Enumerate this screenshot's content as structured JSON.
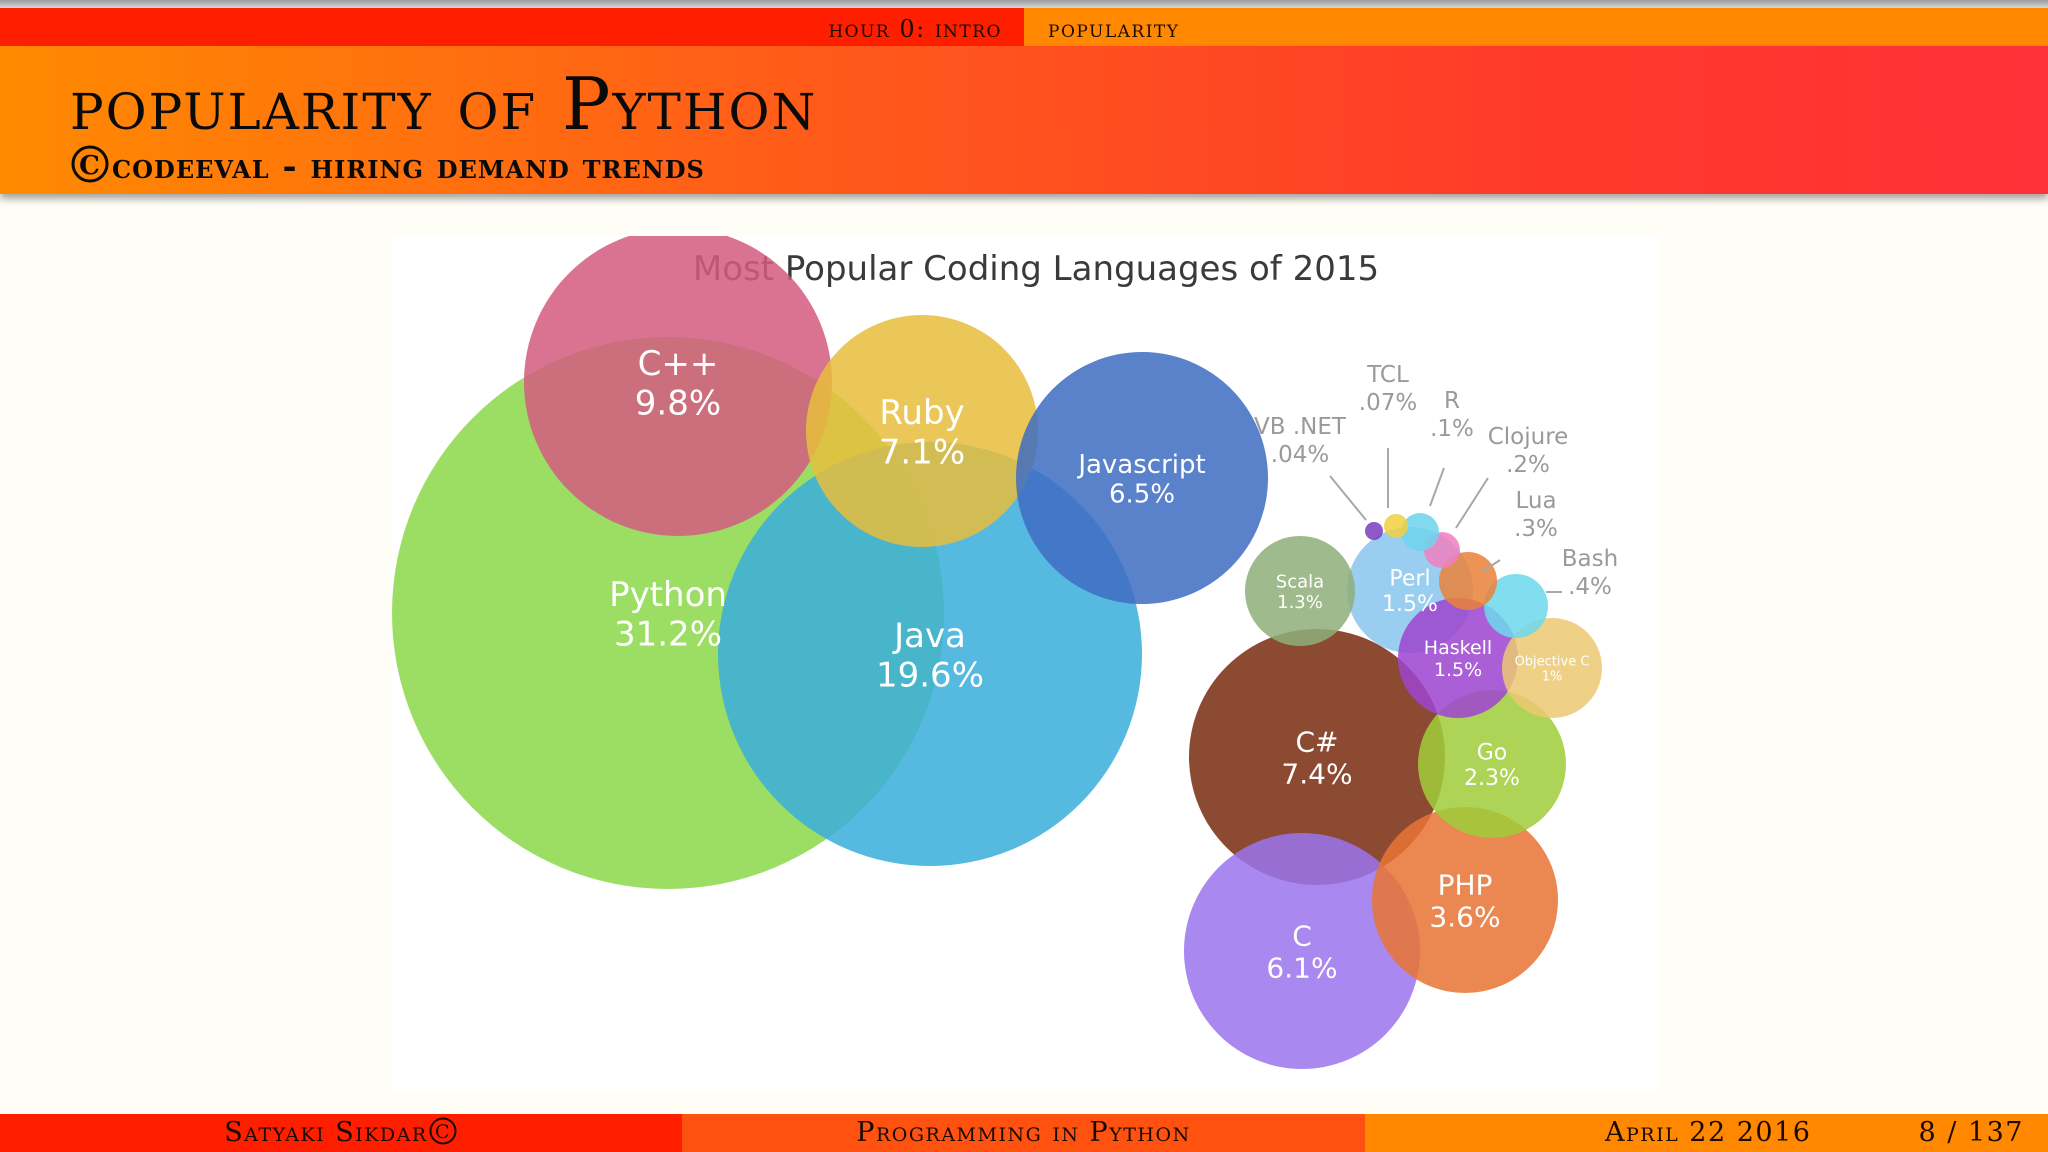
{
  "navbar": {
    "section": "hour 0: intro",
    "subsection": "popularity"
  },
  "frame": {
    "title": "popularity of Python",
    "subtitle_symbol": "C",
    "subtitle": "codeeval - hiring demand trends"
  },
  "footer": {
    "author": "Satyaki Sikdar",
    "author_symbol": "C",
    "presentation_title": "Programming in Python",
    "date": "April 22 2016",
    "page": "8 / 137"
  },
  "chart_data": {
    "type": "bubble",
    "title": "Most Popular Coding Languages of 2015",
    "unit": "%",
    "series": [
      {
        "name": "Python",
        "value": 31.2,
        "label": "31.2%",
        "color": "#8cd94a"
      },
      {
        "name": "Java",
        "value": 19.6,
        "label": "19.6%",
        "color": "#3aaedb"
      },
      {
        "name": "C++",
        "value": 9.8,
        "label": "9.8%",
        "color": "#d45c80"
      },
      {
        "name": "C#",
        "value": 7.4,
        "label": "7.4%",
        "color": "#7a2c12"
      },
      {
        "name": "Ruby",
        "value": 7.1,
        "label": "7.1%",
        "color": "#e6be3c"
      },
      {
        "name": "Javascript",
        "value": 6.5,
        "label": "6.5%",
        "color": "#3f6dc3"
      },
      {
        "name": "C",
        "value": 6.1,
        "label": "6.1%",
        "color": "#9b74ee"
      },
      {
        "name": "PHP",
        "value": 3.6,
        "label": "3.6%",
        "color": "#e87534"
      },
      {
        "name": "Go",
        "value": 2.3,
        "label": "2.3%",
        "color": "#9fcd3a"
      },
      {
        "name": "Perl",
        "value": 1.5,
        "label": "1.5%",
        "color": "#88c6ee"
      },
      {
        "name": "Haskell",
        "value": 1.5,
        "label": "1.5%",
        "color": "#9d45cf"
      },
      {
        "name": "Scala",
        "value": 1.3,
        "label": "1.3%",
        "color": "#8faf7a"
      },
      {
        "name": "Objective C",
        "value": 1,
        "label": "1%",
        "color": "#ebc873"
      },
      {
        "name": "Bash",
        "value": 0.4,
        "label": ".4%",
        "color": "#6dd8ec"
      },
      {
        "name": "Lua",
        "value": 0.3,
        "label": ".3%",
        "color": "#e9823a"
      },
      {
        "name": "Clojure",
        "value": 0.2,
        "label": ".2%",
        "color": "#ee80c0"
      },
      {
        "name": "R",
        "value": 0.1,
        "label": ".1%",
        "color": "#6fd4ec"
      },
      {
        "name": "TCL",
        "value": 0.07,
        "label": ".07%",
        "color": "#f0d040"
      },
      {
        "name": "VB .NET",
        "value": 0.04,
        "label": ".04%",
        "color": "#7a3fbf"
      }
    ]
  }
}
